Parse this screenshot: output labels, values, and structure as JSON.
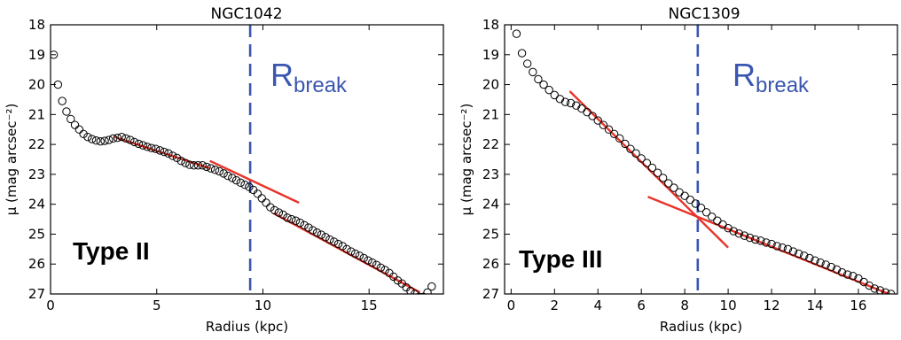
{
  "colors": {
    "points": "#000000",
    "fit": "#e8342a",
    "break_line": "#3a56b0",
    "rbreak_text": "#3a56b0"
  },
  "chart_data": [
    {
      "type": "scatter",
      "title": "NGC1042",
      "xlabel": "Radius (kpc)",
      "ylabel": "μ (mag arcsec⁻²)",
      "xlim": [
        0,
        18.5
      ],
      "ylim": [
        27,
        18
      ],
      "y_inverted": true,
      "xticks": [
        0,
        5,
        10,
        15
      ],
      "yticks": [
        18,
        19,
        20,
        21,
        22,
        23,
        24,
        25,
        26,
        27
      ],
      "profile_type": "Type II",
      "r_break": 9.4,
      "rbreak_label": {
        "main": "R",
        "sub": "break"
      },
      "points": {
        "x": [
          0.15,
          0.35,
          0.55,
          0.75,
          0.95,
          1.15,
          1.35,
          1.55,
          1.75,
          1.95,
          2.15,
          2.35,
          2.55,
          2.75,
          2.95,
          3.15,
          3.35,
          3.55,
          3.75,
          3.95,
          4.15,
          4.35,
          4.55,
          4.75,
          4.95,
          5.15,
          5.35,
          5.55,
          5.75,
          5.95,
          6.15,
          6.35,
          6.55,
          6.75,
          6.95,
          7.15,
          7.35,
          7.55,
          7.75,
          7.95,
          8.15,
          8.35,
          8.55,
          8.75,
          8.95,
          9.15,
          9.35,
          9.55,
          9.75,
          9.95,
          10.15,
          10.35,
          10.55,
          10.75,
          10.95,
          11.15,
          11.35,
          11.55,
          11.75,
          11.95,
          12.15,
          12.35,
          12.55,
          12.75,
          12.95,
          13.15,
          13.35,
          13.55,
          13.75,
          13.95,
          14.15,
          14.35,
          14.55,
          14.75,
          14.95,
          15.15,
          15.35,
          15.55,
          15.75,
          15.95,
          16.15,
          16.35,
          16.55,
          16.75,
          16.95,
          17.15,
          17.35,
          17.55,
          17.75,
          17.95
        ],
        "y": [
          19.0,
          20.0,
          20.55,
          20.9,
          21.15,
          21.35,
          21.5,
          21.65,
          21.75,
          21.82,
          21.87,
          21.9,
          21.88,
          21.85,
          21.8,
          21.78,
          21.75,
          21.8,
          21.85,
          21.92,
          21.98,
          22.03,
          22.08,
          22.12,
          22.15,
          22.2,
          22.25,
          22.3,
          22.38,
          22.45,
          22.55,
          22.62,
          22.68,
          22.7,
          22.7,
          22.7,
          22.75,
          22.8,
          22.85,
          22.9,
          22.97,
          23.05,
          23.12,
          23.2,
          23.28,
          23.35,
          23.42,
          23.52,
          23.65,
          23.8,
          23.95,
          24.1,
          24.2,
          24.28,
          24.35,
          24.45,
          24.5,
          24.55,
          24.62,
          24.7,
          24.78,
          24.87,
          24.95,
          25.02,
          25.1,
          25.18,
          25.25,
          25.33,
          25.4,
          25.5,
          25.58,
          25.65,
          25.72,
          25.8,
          25.88,
          25.95,
          26.03,
          26.12,
          26.2,
          26.3,
          26.42,
          26.55,
          26.65,
          26.78,
          26.9,
          27.0,
          27.1,
          27.1,
          26.95,
          26.75
        ]
      },
      "fits": [
        {
          "x": [
            3.0,
            7.5
          ],
          "y": [
            21.75,
            22.8
          ]
        },
        {
          "x": [
            7.5,
            11.7
          ],
          "y": [
            22.55,
            23.95
          ]
        },
        {
          "x": [
            10.5,
            17.4
          ],
          "y": [
            24.3,
            26.95
          ]
        }
      ]
    },
    {
      "type": "scatter",
      "title": "NGC1309",
      "xlabel": "Radius (kpc)",
      "ylabel": "μ (mag arcsec⁻²)",
      "xlim": [
        -0.3,
        17.8
      ],
      "ylim": [
        27,
        18
      ],
      "y_inverted": true,
      "xticks": [
        0,
        2,
        4,
        6,
        8,
        10,
        12,
        14,
        16
      ],
      "yticks": [
        18,
        19,
        20,
        21,
        22,
        23,
        24,
        25,
        26,
        27
      ],
      "profile_type": "Type III",
      "r_break": 8.6,
      "rbreak_label": {
        "main": "R",
        "sub": "break"
      },
      "points": {
        "x": [
          0.25,
          0.5,
          0.75,
          1.0,
          1.25,
          1.5,
          1.75,
          2.0,
          2.25,
          2.5,
          2.75,
          3.0,
          3.25,
          3.5,
          3.75,
          4.0,
          4.25,
          4.5,
          4.75,
          5.0,
          5.25,
          5.5,
          5.75,
          6.0,
          6.25,
          6.5,
          6.75,
          7.0,
          7.25,
          7.5,
          7.75,
          8.0,
          8.25,
          8.5,
          8.75,
          9.0,
          9.25,
          9.5,
          9.75,
          10.0,
          10.25,
          10.5,
          10.75,
          11.0,
          11.25,
          11.5,
          11.75,
          12.0,
          12.25,
          12.5,
          12.75,
          13.0,
          13.25,
          13.5,
          13.75,
          14.0,
          14.25,
          14.5,
          14.75,
          15.0,
          15.25,
          15.5,
          15.75,
          16.0,
          16.25,
          16.5,
          16.75,
          17.0,
          17.25,
          17.5
        ],
        "y": [
          18.3,
          18.95,
          19.3,
          19.58,
          19.82,
          20.0,
          20.18,
          20.35,
          20.48,
          20.58,
          20.62,
          20.7,
          20.8,
          20.92,
          21.05,
          21.2,
          21.35,
          21.5,
          21.65,
          21.8,
          21.98,
          22.15,
          22.3,
          22.47,
          22.62,
          22.78,
          22.95,
          23.12,
          23.3,
          23.45,
          23.6,
          23.72,
          23.85,
          23.98,
          24.12,
          24.27,
          24.42,
          24.55,
          24.68,
          24.8,
          24.9,
          24.98,
          25.05,
          25.12,
          25.18,
          25.22,
          25.28,
          25.33,
          25.4,
          25.45,
          25.5,
          25.58,
          25.65,
          25.72,
          25.8,
          25.88,
          25.95,
          26.02,
          26.1,
          26.18,
          26.28,
          26.35,
          26.4,
          26.48,
          26.6,
          26.72,
          26.82,
          26.88,
          26.95,
          27.0
        ]
      },
      "fits": [
        {
          "x": [
            2.7,
            10.0
          ],
          "y": [
            20.22,
            25.45
          ]
        },
        {
          "x": [
            6.3,
            17.4
          ],
          "y": [
            23.75,
            27.0
          ]
        }
      ]
    }
  ]
}
